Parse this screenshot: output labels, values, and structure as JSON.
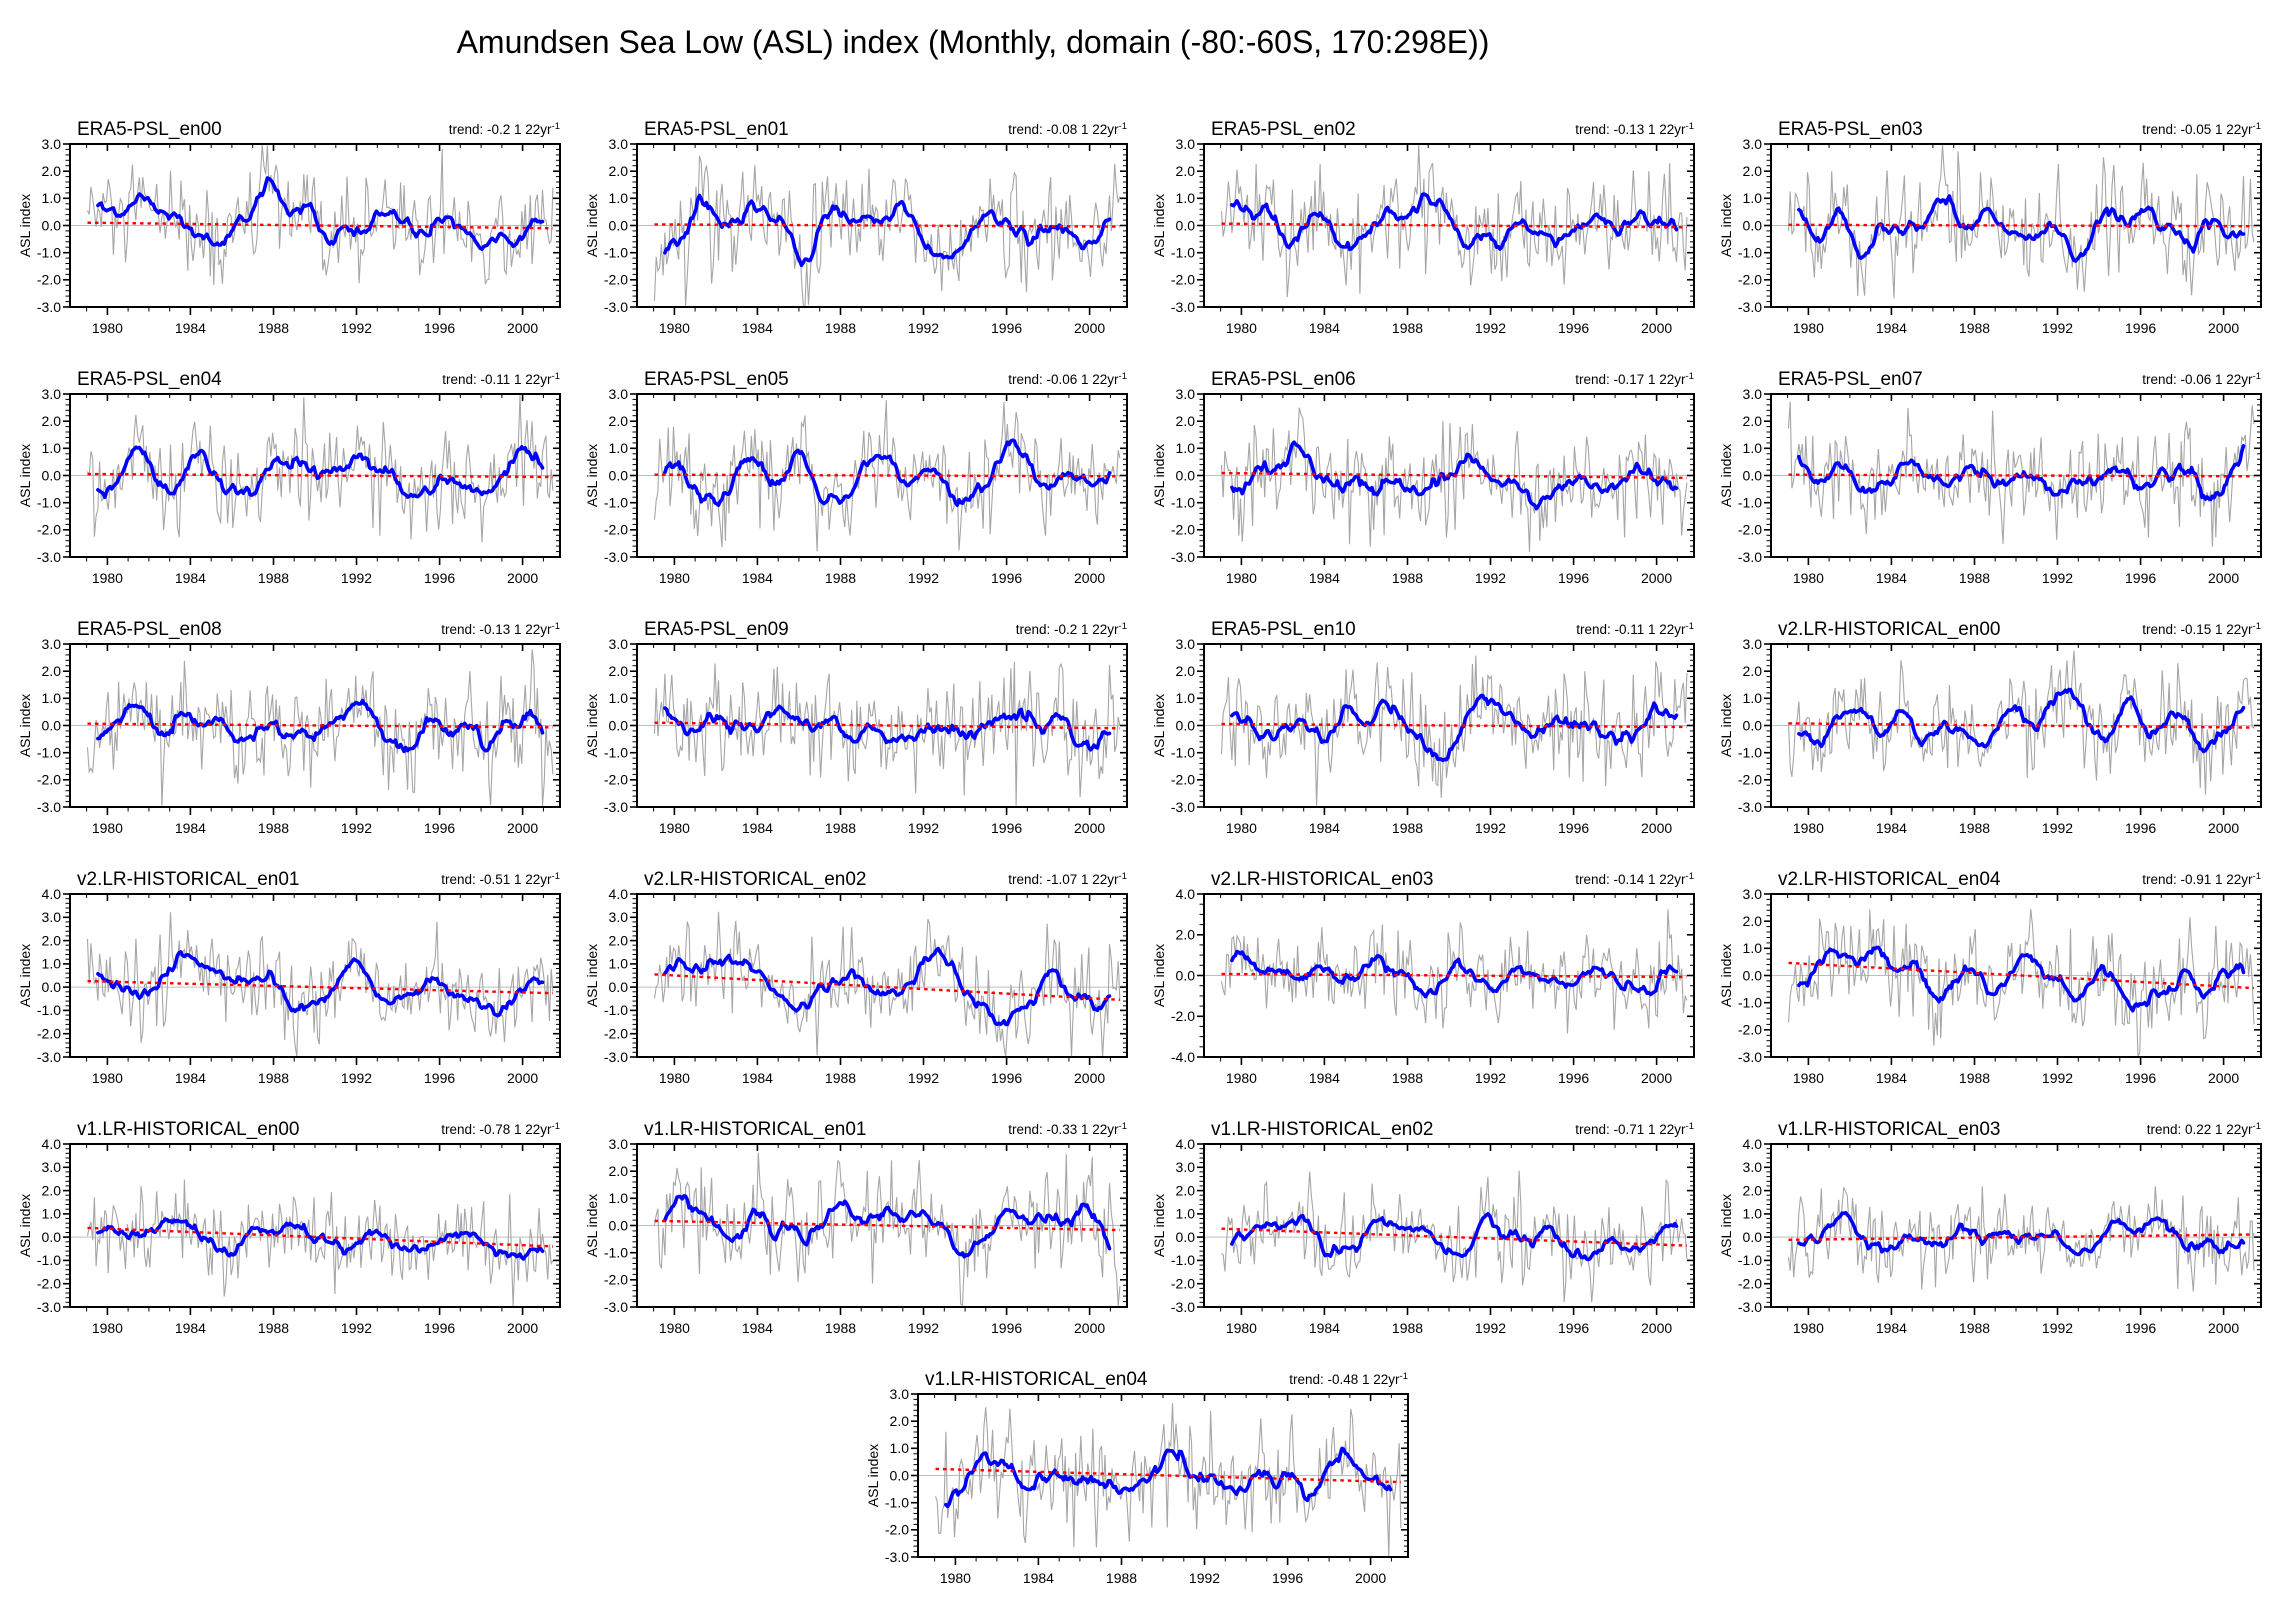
{
  "title": "Amundsen Sea Low (ASL) index (Monthly, domain (-80:-60S, 170:298E))",
  "colors": {
    "monthly_line": "#a6a6a6",
    "smoothed_line": "#0000ff",
    "trend_line": "#ff0000",
    "zero_line": "#bdbdbd",
    "axis": "#000000"
  },
  "chart_data": {
    "type": "line",
    "ylabel": "ASL index",
    "xticks": [
      1980,
      1984,
      1988,
      1992,
      1996,
      2000
    ],
    "x_range": [
      1978.2,
      2001.8
    ],
    "data_start": 1979.0,
    "data_end": 2001.5,
    "grid": false,
    "series": [
      "monthly ASL index (gray)",
      "running-mean ASL index (blue)",
      "linear trend (red dotted)"
    ],
    "trend_label": {
      "prefix": "trend: ",
      "unit": " 1 22yr",
      "exponent": "-1"
    },
    "panels": [
      {
        "name": "ERA5-PSL_en00",
        "trend": "-0.2",
        "ylim": [
          -3,
          3
        ],
        "yticks": [
          -3,
          -2,
          -1,
          0,
          1,
          2,
          3
        ],
        "row": 0,
        "col": 0
      },
      {
        "name": "ERA5-PSL_en01",
        "trend": "-0.08",
        "ylim": [
          -3,
          3
        ],
        "yticks": [
          -3,
          -2,
          -1,
          0,
          1,
          2,
          3
        ],
        "row": 0,
        "col": 1
      },
      {
        "name": "ERA5-PSL_en02",
        "trend": "-0.13",
        "ylim": [
          -3,
          3
        ],
        "yticks": [
          -3,
          -2,
          -1,
          0,
          1,
          2,
          3
        ],
        "row": 0,
        "col": 2
      },
      {
        "name": "ERA5-PSL_en03",
        "trend": "-0.05",
        "ylim": [
          -3,
          3
        ],
        "yticks": [
          -3,
          -2,
          -1,
          0,
          1,
          2,
          3
        ],
        "row": 0,
        "col": 3
      },
      {
        "name": "ERA5-PSL_en04",
        "trend": "-0.11",
        "ylim": [
          -3,
          3
        ],
        "yticks": [
          -3,
          -2,
          -1,
          0,
          1,
          2,
          3
        ],
        "row": 1,
        "col": 0
      },
      {
        "name": "ERA5-PSL_en05",
        "trend": "-0.06",
        "ylim": [
          -3,
          3
        ],
        "yticks": [
          -3,
          -2,
          -1,
          0,
          1,
          2,
          3
        ],
        "row": 1,
        "col": 1
      },
      {
        "name": "ERA5-PSL_en06",
        "trend": "-0.17",
        "ylim": [
          -3,
          3
        ],
        "yticks": [
          -3,
          -2,
          -1,
          0,
          1,
          2,
          3
        ],
        "row": 1,
        "col": 2
      },
      {
        "name": "ERA5-PSL_en07",
        "trend": "-0.06",
        "ylim": [
          -3,
          3
        ],
        "yticks": [
          -3,
          -2,
          -1,
          0,
          1,
          2,
          3
        ],
        "row": 1,
        "col": 3
      },
      {
        "name": "ERA5-PSL_en08",
        "trend": "-0.13",
        "ylim": [
          -3,
          3
        ],
        "yticks": [
          -3,
          -2,
          -1,
          0,
          1,
          2,
          3
        ],
        "row": 2,
        "col": 0
      },
      {
        "name": "ERA5-PSL_en09",
        "trend": "-0.2",
        "ylim": [
          -3,
          3
        ],
        "yticks": [
          -3,
          -2,
          -1,
          0,
          1,
          2,
          3
        ],
        "row": 2,
        "col": 1
      },
      {
        "name": "ERA5-PSL_en10",
        "trend": "-0.11",
        "ylim": [
          -3,
          3
        ],
        "yticks": [
          -3,
          -2,
          -1,
          0,
          1,
          2,
          3
        ],
        "row": 2,
        "col": 2
      },
      {
        "name": "v2.LR-HISTORICAL_en00",
        "trend": "-0.15",
        "ylim": [
          -3,
          3
        ],
        "yticks": [
          -3,
          -2,
          -1,
          0,
          1,
          2,
          3
        ],
        "row": 2,
        "col": 3
      },
      {
        "name": "v2.LR-HISTORICAL_en01",
        "trend": "-0.51",
        "ylim": [
          -3,
          4
        ],
        "yticks": [
          -3,
          -2,
          -1,
          0,
          1,
          2,
          3,
          4
        ],
        "row": 3,
        "col": 0
      },
      {
        "name": "v2.LR-HISTORICAL_en02",
        "trend": "-1.07",
        "ylim": [
          -3,
          4
        ],
        "yticks": [
          -3,
          -2,
          -1,
          0,
          1,
          2,
          3,
          4
        ],
        "row": 3,
        "col": 1
      },
      {
        "name": "v2.LR-HISTORICAL_en03",
        "trend": "-0.14",
        "ylim": [
          -4,
          4
        ],
        "yticks": [
          -4,
          -2,
          0,
          2,
          4
        ],
        "row": 3,
        "col": 2
      },
      {
        "name": "v2.LR-HISTORICAL_en04",
        "trend": "-0.91",
        "ylim": [
          -3,
          3
        ],
        "yticks": [
          -3,
          -2,
          -1,
          0,
          1,
          2,
          3
        ],
        "row": 3,
        "col": 3
      },
      {
        "name": "v1.LR-HISTORICAL_en00",
        "trend": "-0.78",
        "ylim": [
          -3,
          4
        ],
        "yticks": [
          -3,
          -2,
          -1,
          0,
          1,
          2,
          3,
          4
        ],
        "row": 4,
        "col": 0
      },
      {
        "name": "v1.LR-HISTORICAL_en01",
        "trend": "-0.33",
        "ylim": [
          -3,
          3
        ],
        "yticks": [
          -3,
          -2,
          -1,
          0,
          1,
          2,
          3
        ],
        "row": 4,
        "col": 1
      },
      {
        "name": "v1.LR-HISTORICAL_en02",
        "trend": "-0.71",
        "ylim": [
          -3,
          4
        ],
        "yticks": [
          -3,
          -2,
          -1,
          0,
          1,
          2,
          3,
          4
        ],
        "row": 4,
        "col": 2
      },
      {
        "name": "v1.LR-HISTORICAL_en03",
        "trend": "0.22",
        "ylim": [
          -3,
          4
        ],
        "yticks": [
          -3,
          -2,
          -1,
          0,
          1,
          2,
          3,
          4
        ],
        "row": 4,
        "col": 3
      },
      {
        "name": "v1.LR-HISTORICAL_en04",
        "trend": "-0.48",
        "ylim": [
          -3,
          3
        ],
        "yticks": [
          -3,
          -2,
          -1,
          0,
          1,
          2,
          3
        ],
        "row": 5,
        "col": null
      }
    ]
  }
}
